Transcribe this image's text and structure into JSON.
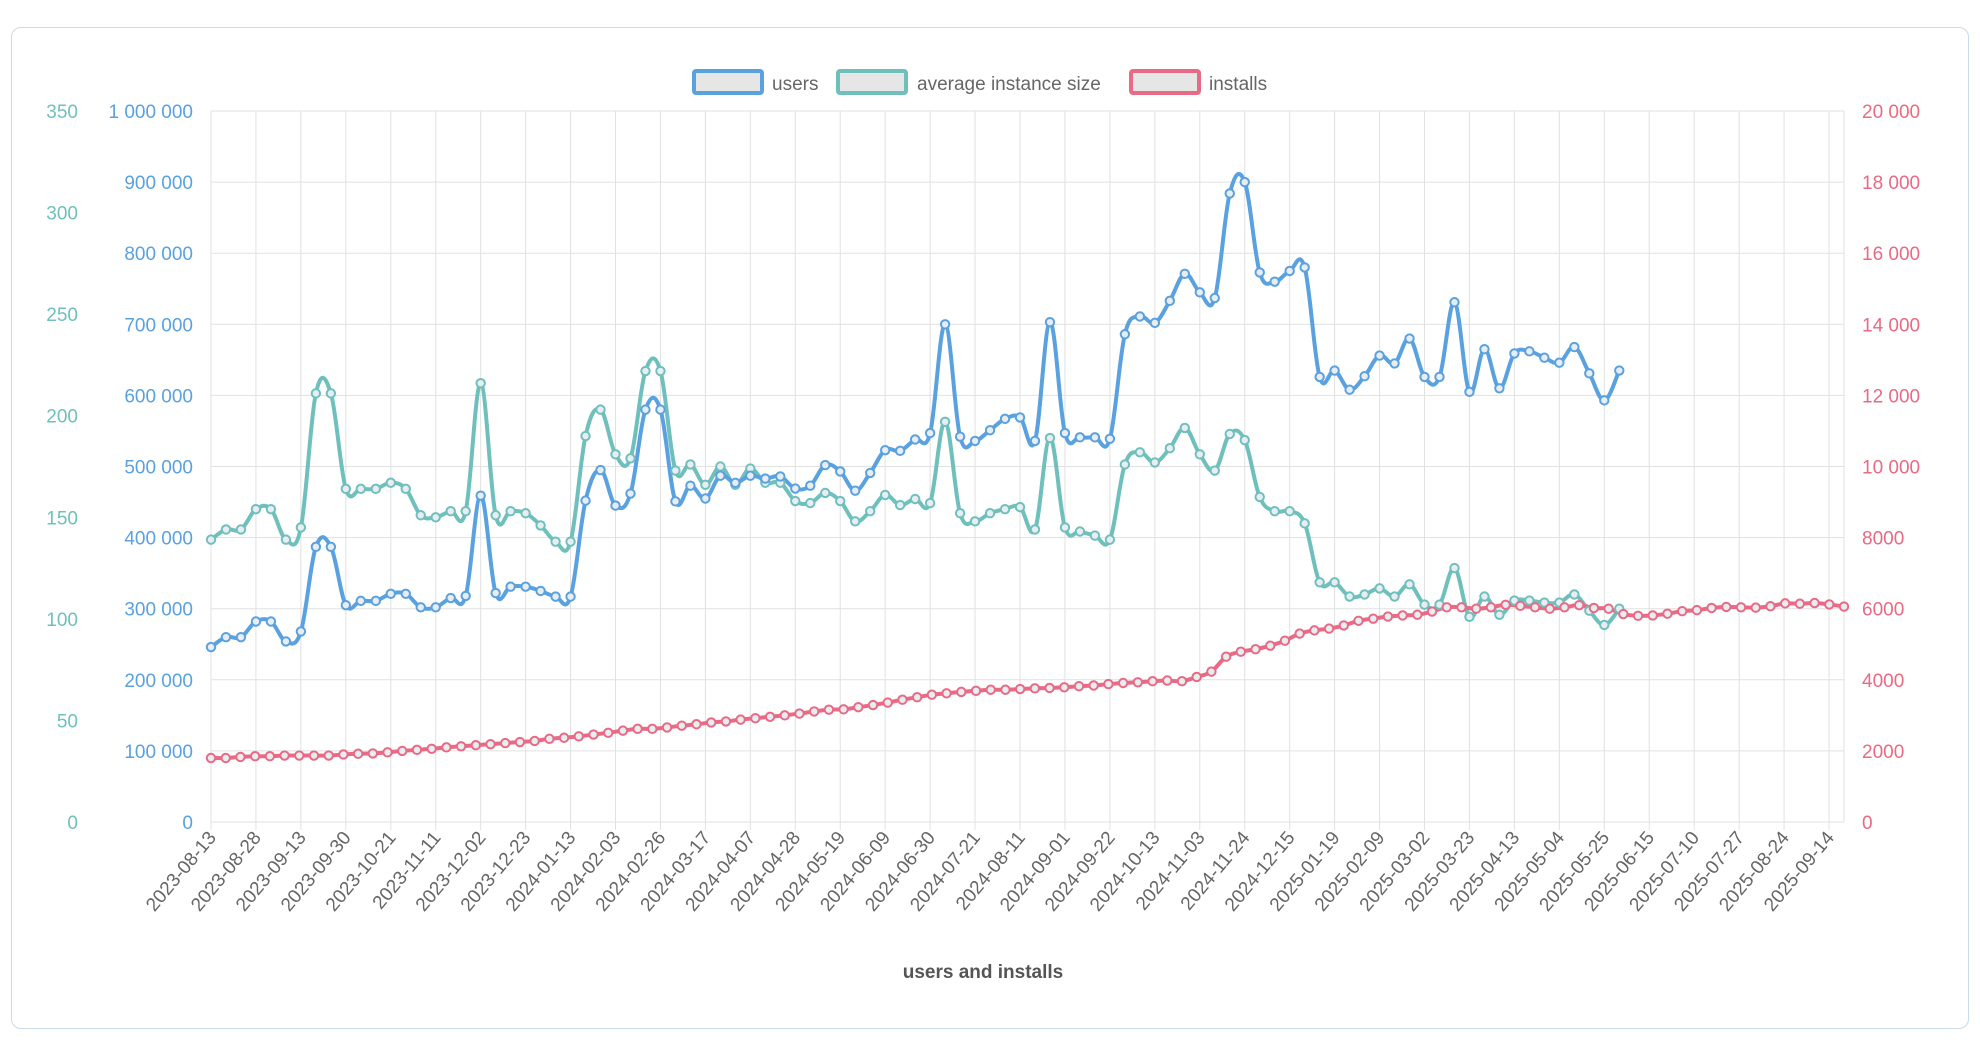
{
  "chart_data": {
    "type": "line",
    "xlabel": "users and installs",
    "legend_position": "top",
    "grid": true,
    "colors": {
      "users": "#5aa1e0",
      "avg": "#6fc0bd",
      "installs": "#e86a84",
      "legend_fill": "#e6e6e6",
      "grid": "#e1e1e1"
    },
    "x_tick_labels": [
      "2023-08-13",
      "2023-08-28",
      "2023-09-13",
      "2023-09-30",
      "2023-10-21",
      "2023-11-11",
      "2023-12-02",
      "2023-12-23",
      "2024-01-13",
      "2024-02-03",
      "2024-02-26",
      "2024-03-17",
      "2024-04-07",
      "2024-04-28",
      "2024-05-19",
      "2024-06-09",
      "2024-06-30",
      "2024-07-21",
      "2024-08-11",
      "2024-09-01",
      "2024-09-22",
      "2024-10-13",
      "2024-11-03",
      "2024-11-24",
      "2024-12-15",
      "2025-01-19",
      "2025-02-09",
      "2025-03-02",
      "2025-03-23",
      "2025-04-13",
      "2025-05-04",
      "2025-05-25",
      "2025-06-15",
      "2025-07-10",
      "2025-07-27",
      "2025-08-24",
      "2025-09-14"
    ],
    "axes": {
      "y_users": {
        "min": 0,
        "max": 1000000,
        "ticks": [
          "0",
          "100 000",
          "200 000",
          "300 000",
          "400 000",
          "500 000",
          "600 000",
          "700 000",
          "800 000",
          "900 000",
          "1 000 000"
        ]
      },
      "y_avg": {
        "min": 0,
        "max": 350,
        "ticks": [
          "0",
          "50",
          "100",
          "150",
          "200",
          "250",
          "300",
          "350"
        ]
      },
      "y_installs": {
        "min": 0,
        "max": 20000,
        "ticks": [
          "0",
          "2000",
          "4000",
          "6000",
          "8000",
          "10 000",
          "12 000",
          "14 000",
          "16 000",
          "18 000",
          "20 000"
        ]
      }
    },
    "series": [
      {
        "name": "users",
        "axis": "y_users",
        "values": [
          246000,
          260000,
          260000,
          282000,
          282000,
          254000,
          268000,
          387000,
          387000,
          305000,
          311000,
          311000,
          321000,
          321000,
          302000,
          302000,
          315000,
          318000,
          459000,
          322000,
          331000,
          331000,
          325000,
          317000,
          317000,
          452000,
          495000,
          445000,
          462000,
          580000,
          580000,
          451000,
          473000,
          455000,
          487000,
          477000,
          487000,
          483000,
          486000,
          469000,
          473000,
          502000,
          493000,
          466000,
          491000,
          523000,
          522000,
          538000,
          547000,
          700000,
          542000,
          536000,
          551000,
          567000,
          569000,
          536000,
          703000,
          547000,
          541000,
          541000,
          539000,
          686000,
          711000,
          702000,
          733000,
          771000,
          745000,
          737000,
          884000,
          900000,
          773000,
          760000,
          775000,
          780000,
          626000,
          635000,
          608000,
          627000,
          656000,
          645000,
          680000,
          626000,
          626000,
          731000,
          605000,
          665000,
          610000,
          659000,
          662000,
          653000,
          646000,
          668000,
          631000,
          593000,
          635000
        ],
        "point_start_index": 0
      },
      {
        "name": "average instance size",
        "axis": "y_avg",
        "values": [
          139,
          144,
          144,
          154,
          154,
          139,
          145,
          211,
          211,
          164,
          164,
          164,
          167,
          164,
          151,
          150,
          153,
          153,
          216,
          151,
          153,
          152,
          146,
          138,
          138,
          190,
          203,
          181,
          179,
          222,
          222,
          173,
          176,
          166,
          175,
          166,
          174,
          167,
          167,
          158,
          157,
          162,
          158,
          148,
          153,
          161,
          156,
          159,
          157,
          197,
          152,
          148,
          152,
          154,
          155,
          144,
          189,
          145,
          143,
          141,
          139,
          176,
          182,
          177,
          184,
          194,
          181,
          173,
          191,
          188,
          160,
          153,
          153,
          147,
          118,
          118,
          111,
          112,
          115,
          111,
          117,
          107,
          107,
          125,
          101,
          111,
          102,
          109,
          109,
          108,
          108,
          112,
          104,
          97,
          105
        ],
        "point_start_index": 0
      },
      {
        "name": "installs",
        "axis": "y_installs",
        "values": [
          1800,
          1800,
          1830,
          1850,
          1850,
          1870,
          1870,
          1870,
          1870,
          1900,
          1920,
          1930,
          1960,
          2000,
          2030,
          2060,
          2100,
          2130,
          2160,
          2190,
          2220,
          2250,
          2280,
          2340,
          2370,
          2410,
          2460,
          2510,
          2570,
          2620,
          2620,
          2660,
          2710,
          2750,
          2800,
          2830,
          2880,
          2920,
          2960,
          3000,
          3050,
          3110,
          3160,
          3170,
          3230,
          3290,
          3360,
          3440,
          3510,
          3580,
          3620,
          3660,
          3690,
          3720,
          3720,
          3740,
          3760,
          3770,
          3790,
          3820,
          3840,
          3880,
          3910,
          3930,
          3960,
          3980,
          3960,
          4080,
          4230,
          4650,
          4790,
          4860,
          4960,
          5100,
          5300,
          5390,
          5440,
          5530,
          5660,
          5720,
          5780,
          5810,
          5830,
          5920,
          6040,
          6040,
          6000,
          6040,
          6110,
          6080,
          6040,
          6000,
          6040,
          6100,
          6020,
          6000,
          5850,
          5800,
          5810,
          5860,
          5930,
          5960,
          6020,
          6050,
          6040,
          6030,
          6070,
          6150,
          6140,
          6160,
          6120,
          6060
        ],
        "point_start_index": 0
      }
    ]
  }
}
